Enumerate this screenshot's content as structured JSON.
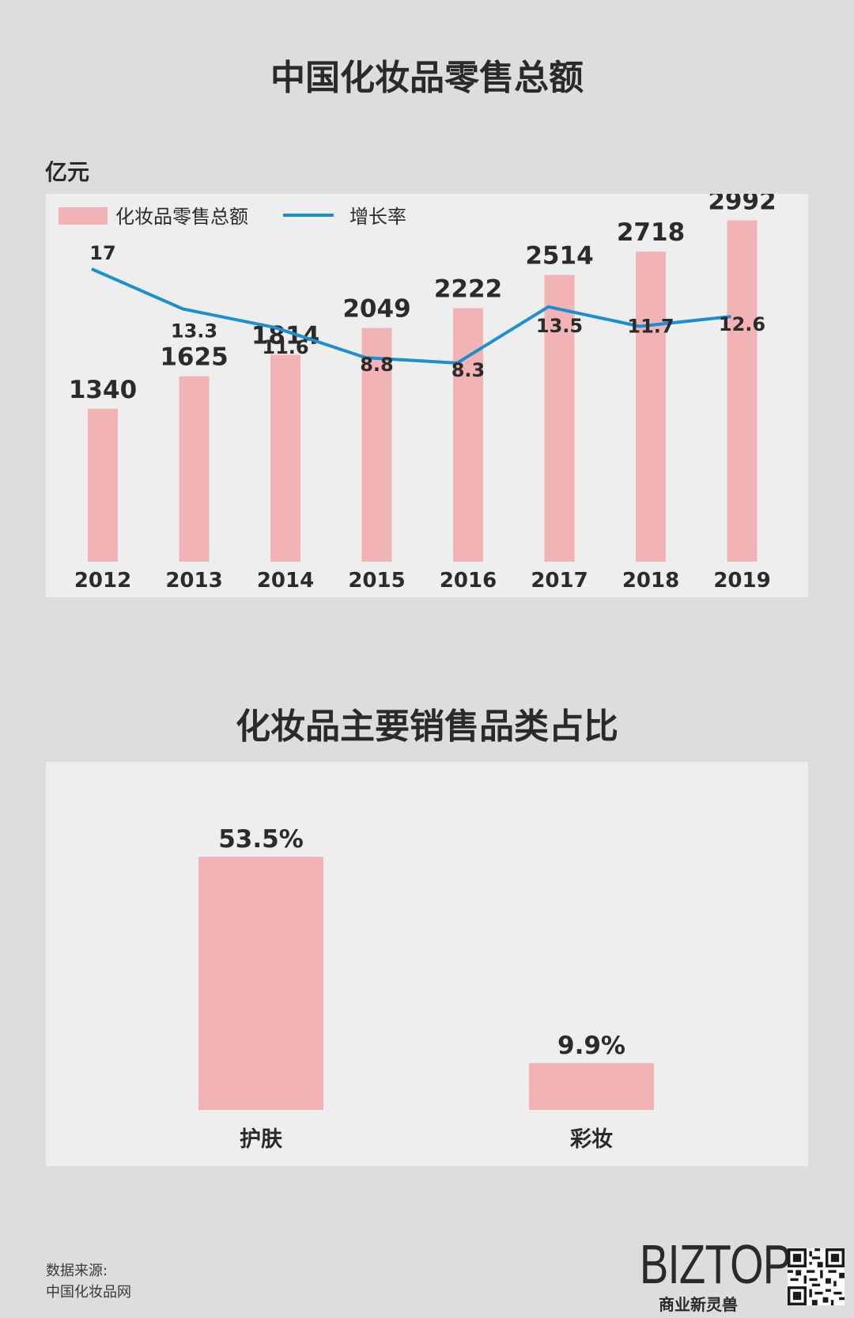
{
  "header": {
    "title": "中国化妆品零售总额",
    "unit": "亿元"
  },
  "section2": {
    "title": "化妆品主要销售品类占比"
  },
  "colors": {
    "bar": "#f2b3b4",
    "line": "#1b8fd2",
    "panel": "#eeeeee",
    "background": "#dcdddd"
  },
  "chart_data": [
    {
      "type": "bar",
      "title": "中国化妆品零售总额",
      "ylabel": "亿元",
      "categories": [
        "2012",
        "2013",
        "2014",
        "2015",
        "2016",
        "2017",
        "2018",
        "2019"
      ],
      "series": [
        {
          "name": "化妆品零售总额",
          "type": "bar",
          "values": [
            1340,
            1625,
            1814,
            2049,
            2222,
            2514,
            2718,
            2992
          ]
        },
        {
          "name": "增长率",
          "type": "line",
          "values": [
            17,
            13.3,
            11.6,
            8.8,
            8.3,
            13.5,
            11.7,
            12.6
          ]
        }
      ],
      "ylim": [
        0,
        3300
      ],
      "legend": "top-left",
      "grid": false
    },
    {
      "type": "bar",
      "title": "化妆品主要销售品类占比",
      "categories": [
        "护肤",
        "彩妆"
      ],
      "values": [
        53.5,
        9.9
      ],
      "value_labels": [
        "53.5%",
        "9.9%"
      ],
      "grid": false
    }
  ],
  "footer": {
    "source_label": "数据来源:",
    "source_name": "中国化妆品网",
    "brand": "BIZTOP",
    "brand_sub": "商业新灵兽"
  }
}
